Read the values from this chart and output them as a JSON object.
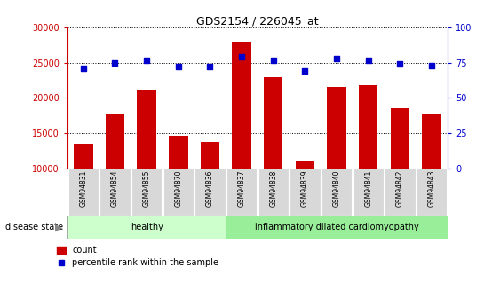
{
  "title": "GDS2154 / 226045_at",
  "samples": [
    "GSM94831",
    "GSM94854",
    "GSM94855",
    "GSM94870",
    "GSM94836",
    "GSM94837",
    "GSM94838",
    "GSM94839",
    "GSM94840",
    "GSM94841",
    "GSM94842",
    "GSM94843"
  ],
  "counts": [
    13500,
    17800,
    21000,
    14600,
    13800,
    28000,
    23000,
    11000,
    21600,
    21800,
    18600,
    17700
  ],
  "percentiles": [
    71,
    75,
    77,
    72,
    72,
    79,
    77,
    69,
    78,
    77,
    74,
    73
  ],
  "bar_color": "#cc0000",
  "dot_color": "#0000cc",
  "ylim_left": [
    10000,
    30000
  ],
  "ylim_right": [
    0,
    100
  ],
  "yticks_left": [
    10000,
    15000,
    20000,
    25000,
    30000
  ],
  "yticks_right": [
    0,
    25,
    50,
    75,
    100
  ],
  "healthy_count": 5,
  "total_count": 12,
  "healthy_label": "healthy",
  "disease_label": "inflammatory dilated cardiomyopathy",
  "healthy_color": "#ccffcc",
  "disease_color": "#99ee99",
  "disease_state_label": "disease state",
  "legend_count_label": "count",
  "legend_percentile_label": "percentile rank within the sample",
  "grid_color": "black",
  "axis_left_color": "#cc0000",
  "axis_right_color": "#0000cc",
  "bar_bottom": 10000,
  "bar_width": 0.6,
  "label_box_color": "#d8d8d8",
  "fig_width": 5.63,
  "fig_height": 3.45,
  "dpi": 100
}
